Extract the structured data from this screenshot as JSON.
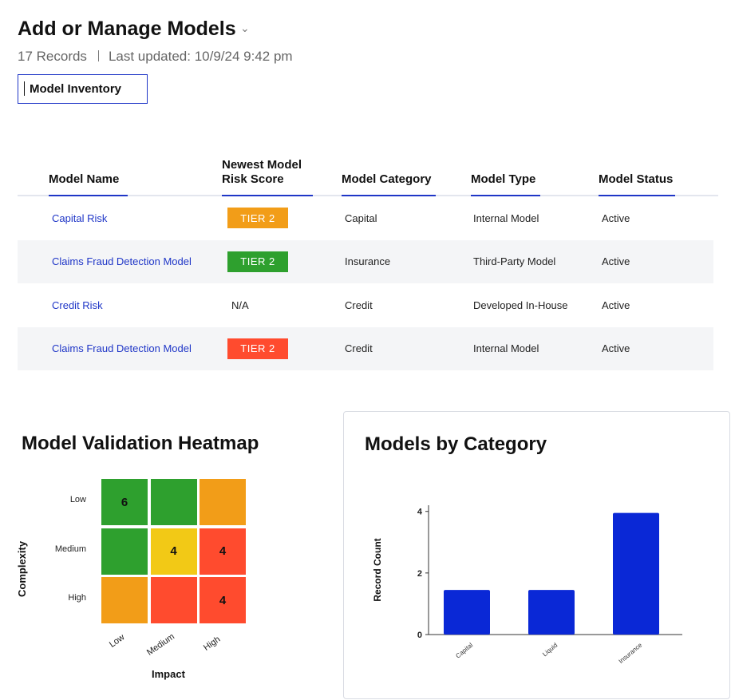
{
  "header": {
    "title": "Add or Manage Models",
    "record_count": "17 Records",
    "last_updated": "Last updated: 10/9/24 9:42 pm",
    "view_select": "Model Inventory"
  },
  "table": {
    "columns": [
      "Model Name",
      "Newest Model\nRisk Score",
      "Model Category",
      "Model Type",
      "Model Status"
    ],
    "rows": [
      {
        "name": "Capital Risk",
        "score": "TIER 2",
        "score_color": "#f29d18",
        "category": "Capital",
        "type": "Internal Model",
        "status": "Active"
      },
      {
        "name": "Claims Fraud Detection Model",
        "score": "TIER 2",
        "score_color": "#2ea02e",
        "category": "Insurance",
        "type": "Third-Party Model",
        "status": "Active"
      },
      {
        "name": "Credit Risk",
        "score": "N/A",
        "score_color": "",
        "category": "Credit",
        "type": "Developed In-House",
        "status": "Active"
      },
      {
        "name": "Claims Fraud Detection Model",
        "score": "TIER 2",
        "score_color": "#ff4b2e",
        "category": "Credit",
        "type": "Internal Model",
        "status": "Active"
      }
    ]
  },
  "heatmap": {
    "title": "Model Validation Heatmap",
    "y_title": "Complexity",
    "x_title": "Impact",
    "rows": [
      "Low",
      "Medium",
      "High"
    ],
    "cols": [
      "Low",
      "Medium",
      "High"
    ],
    "cells": [
      [
        {
          "value": "6",
          "color": "#2ea02e"
        },
        {
          "value": "",
          "color": "#2ea02e"
        },
        {
          "value": "",
          "color": "#f29d18"
        }
      ],
      [
        {
          "value": "",
          "color": "#2ea02e"
        },
        {
          "value": "4",
          "color": "#f2c916"
        },
        {
          "value": "4",
          "color": "#ff4b2e"
        }
      ],
      [
        {
          "value": "",
          "color": "#f29d18"
        },
        {
          "value": "",
          "color": "#ff4b2e"
        },
        {
          "value": "4",
          "color": "#ff4b2e"
        }
      ]
    ]
  },
  "chart_data": {
    "type": "bar",
    "title": "Models by Category",
    "ylabel": "Record Count",
    "xlabel": "",
    "categories": [
      "Capital",
      "Liquid",
      "Insurance"
    ],
    "values": [
      1.45,
      1.45,
      3.95
    ],
    "ylim": [
      0,
      4.2
    ],
    "yticks": [
      0,
      2,
      4
    ],
    "bar_color": "#0a28d6"
  },
  "colors": {
    "accent": "#1f36c7",
    "link": "#1f36c7"
  }
}
